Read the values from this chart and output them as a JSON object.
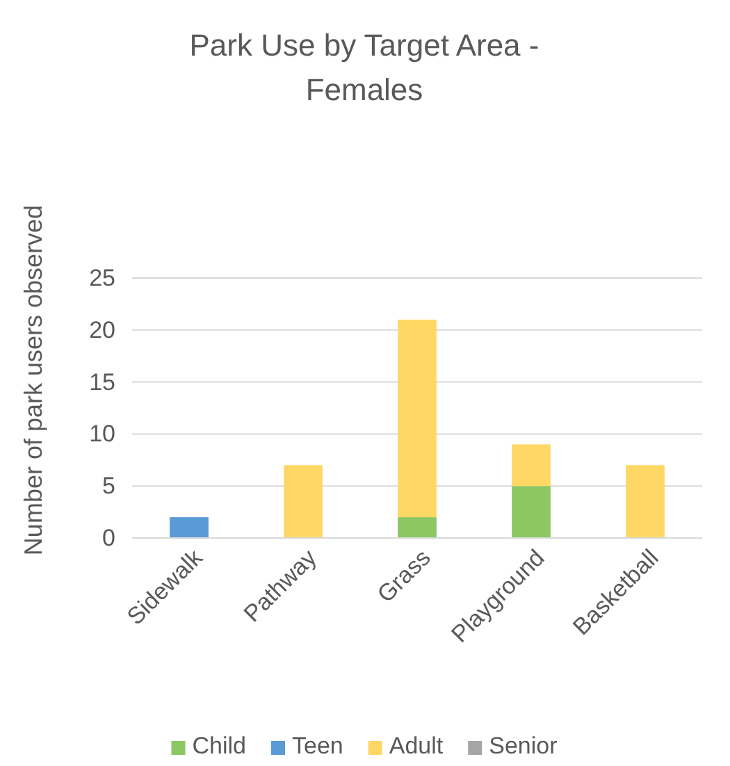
{
  "chart_data": {
    "type": "bar",
    "stacked": true,
    "title": "Park Use by Target Area - Females",
    "ylabel": "Number of park users observed",
    "categories": [
      "Sidewalk",
      "Pathway",
      "Grass",
      "Playground",
      "Basketball"
    ],
    "series": [
      {
        "name": "Child",
        "color": "#8cc763",
        "values": [
          0,
          0,
          2,
          5,
          0
        ]
      },
      {
        "name": "Teen",
        "color": "#5b9bd5",
        "values": [
          2,
          0,
          0,
          0,
          0
        ]
      },
      {
        "name": "Adult",
        "color": "#ffd765",
        "values": [
          0,
          7,
          19,
          4,
          7
        ]
      },
      {
        "name": "Senior",
        "color": "#a5a5a5",
        "values": [
          0,
          0,
          0,
          0,
          0
        ]
      }
    ],
    "ylim": [
      0,
      25
    ],
    "yticks": [
      0,
      5,
      10,
      15,
      20,
      25
    ],
    "grid": "y",
    "legend": "bottom"
  }
}
